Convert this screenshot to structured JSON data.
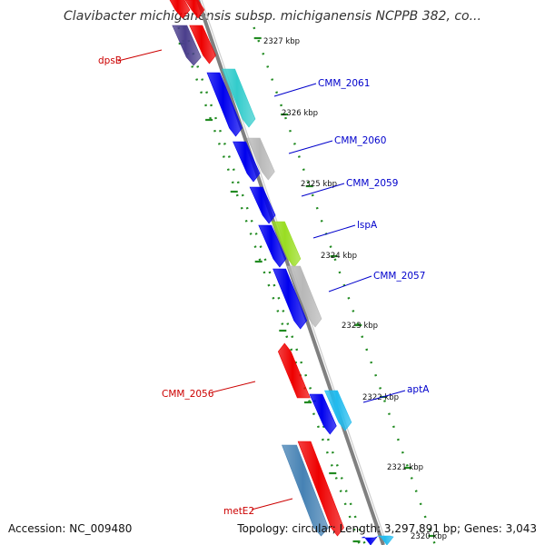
{
  "title": "Clavibacter michiganensis subsp. michiganensis NCPPB 382, co...",
  "footer": {
    "accession": "Accession: NC_009480",
    "topology": "Topology: circular; Length: 3,297,891 bp; Genes: 3,043"
  },
  "colors": {
    "backbone": "#808080",
    "dots": "#228b22",
    "blue": "#0000ee",
    "cyan": "#33cccc",
    "gray": "#b8b8b8",
    "red": "#ee0000",
    "green": "#99dd22",
    "steel": "#4682b4",
    "purple": "#4b3f8c",
    "aqua": "#22bbee",
    "label_blue": "#0000cc",
    "label_red": "#cc0000"
  },
  "kbp_labels": [
    "2327 kbp",
    "2326 kbp",
    "2325 kbp",
    "2324 kbp",
    "2323 kbp",
    "2322 kbp",
    "2321 kbp",
    "2320 kbp"
  ],
  "gene_labels": [
    {
      "text": "dpsB",
      "color": "label_red"
    },
    {
      "text": "CMM_2061",
      "color": "label_blue"
    },
    {
      "text": "CMM_2060",
      "color": "label_blue"
    },
    {
      "text": "CMM_2059",
      "color": "label_blue"
    },
    {
      "text": "lspA",
      "color": "label_blue"
    },
    {
      "text": "CMM_2057",
      "color": "label_blue"
    },
    {
      "text": "CMM_2056",
      "color": "label_red"
    },
    {
      "text": "aptA",
      "color": "label_blue"
    },
    {
      "text": "metE2",
      "color": "label_red"
    }
  ]
}
